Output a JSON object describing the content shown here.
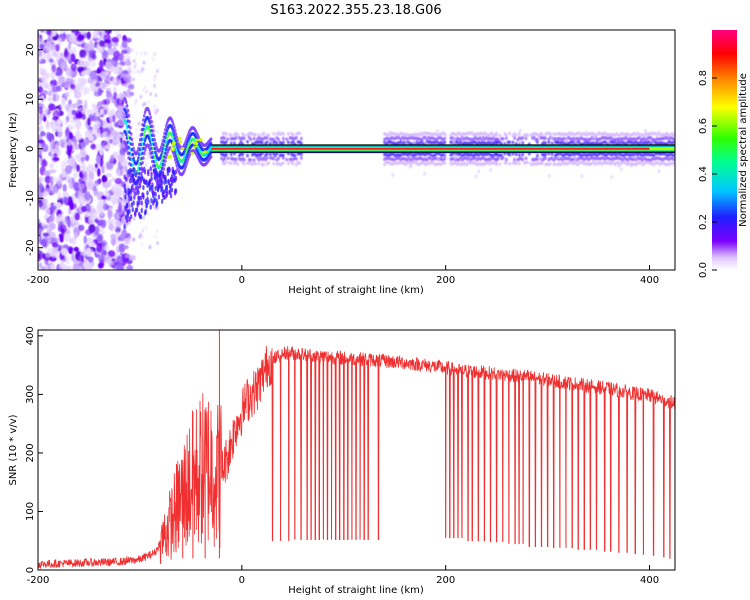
{
  "title": "S163.2022.355.23.18.G06",
  "colors": {
    "snr_line": "#f03030",
    "carrier_band": "#ff1a1a",
    "frame": "#000000"
  },
  "chart_data": [
    {
      "type": "heatmap",
      "name": "spectrogram",
      "xlabel": "Height of straight line (km)",
      "ylabel": "Frequency (Hz)",
      "xlim": [
        -200,
        425
      ],
      "ylim": [
        -24.5,
        24
      ],
      "x_ticks": [
        -200,
        0,
        200,
        400
      ],
      "y_ticks": [
        -20,
        -10,
        0,
        10,
        20
      ],
      "grid": false,
      "colorbar": {
        "label": "Normalized spectral amplitude",
        "range": [
          0,
          1
        ],
        "ticks": [
          "0.0",
          "0.2",
          "0.4",
          "0.6",
          "0.8"
        ],
        "colormap": [
          "#ffffff",
          "#7b00ff",
          "#2020ff",
          "#00c8ff",
          "#00ff80",
          "#40ff00",
          "#ffff00",
          "#ff8000",
          "#ff0000",
          "#ff0080"
        ]
      },
      "features": [
        {
          "segment": "noise",
          "x_range": [
            -200,
            -110
          ],
          "freq_range": [
            -24.5,
            24
          ],
          "amplitude": 0.1
        },
        {
          "segment": "oscillation",
          "x_range": [
            -115,
            -30
          ],
          "freq_start": 8,
          "freq_end": 0,
          "amplitude": 0.3
        },
        {
          "segment": "carrier",
          "x_range": [
            -30,
            425
          ],
          "freq": 0,
          "amplitude": 0.9
        },
        {
          "segment": "sidebands",
          "x_range": [
            140,
            425
          ],
          "freq": 0,
          "amplitude": 0.15
        }
      ]
    },
    {
      "type": "line",
      "name": "snr",
      "xlabel": "Height of straight line (km)",
      "ylabel": "SNR (10 * v/v)",
      "xlim": [
        -200,
        425
      ],
      "ylim": [
        0,
        410
      ],
      "x_ticks": [
        -200,
        0,
        200,
        400
      ],
      "y_ticks": [
        0,
        100,
        200,
        300,
        400
      ],
      "grid": false,
      "series": [
        {
          "x": [
            -200,
            -160,
            -120,
            -100,
            -85,
            -70,
            -60,
            -50,
            -40,
            -30,
            -22,
            -15,
            -5,
            5,
            15,
            25,
            35,
            45,
            60,
            80,
            100,
            120,
            140,
            160,
            180,
            200,
            220,
            240,
            260,
            280,
            300,
            320,
            340,
            360,
            380,
            400,
            425
          ],
          "y": [
            10,
            12,
            14,
            18,
            30,
            80,
            120,
            150,
            170,
            180,
            160,
            190,
            250,
            290,
            310,
            350,
            365,
            372,
            368,
            365,
            362,
            360,
            357,
            354,
            350,
            345,
            340,
            337,
            333,
            330,
            325,
            320,
            315,
            310,
            303,
            298,
            285
          ]
        }
      ],
      "dropouts": {
        "x": [
          30,
          38,
          46,
          52,
          58,
          64,
          68,
          72,
          76,
          80,
          84,
          88,
          92,
          96,
          100,
          104,
          108,
          112,
          116,
          120,
          124,
          134,
          200,
          204,
          208,
          212,
          216,
          222,
          226,
          232,
          238,
          244,
          250,
          256,
          262,
          268,
          272,
          276,
          282,
          288,
          294,
          300,
          306,
          312,
          318,
          324,
          330,
          336,
          342,
          348,
          356,
          362,
          370,
          378,
          386,
          394,
          404,
          414,
          420
        ],
        "y": [
          50,
          50,
          50,
          52,
          52,
          52,
          52,
          52,
          52,
          52,
          52,
          52,
          52,
          52,
          52,
          52,
          52,
          52,
          52,
          52,
          52,
          52,
          55,
          55,
          55,
          55,
          55,
          50,
          50,
          50,
          50,
          48,
          48,
          48,
          45,
          45,
          45,
          45,
          40,
          40,
          40,
          40,
          38,
          38,
          38,
          38,
          35,
          35,
          35,
          35,
          32,
          32,
          30,
          30,
          28,
          26,
          25,
          22,
          20
        ]
      },
      "spikes": {
        "x": [
          -22,
          -58,
          -48,
          -36
        ],
        "y": [
          410,
          160,
          270,
          225
        ]
      }
    }
  ]
}
